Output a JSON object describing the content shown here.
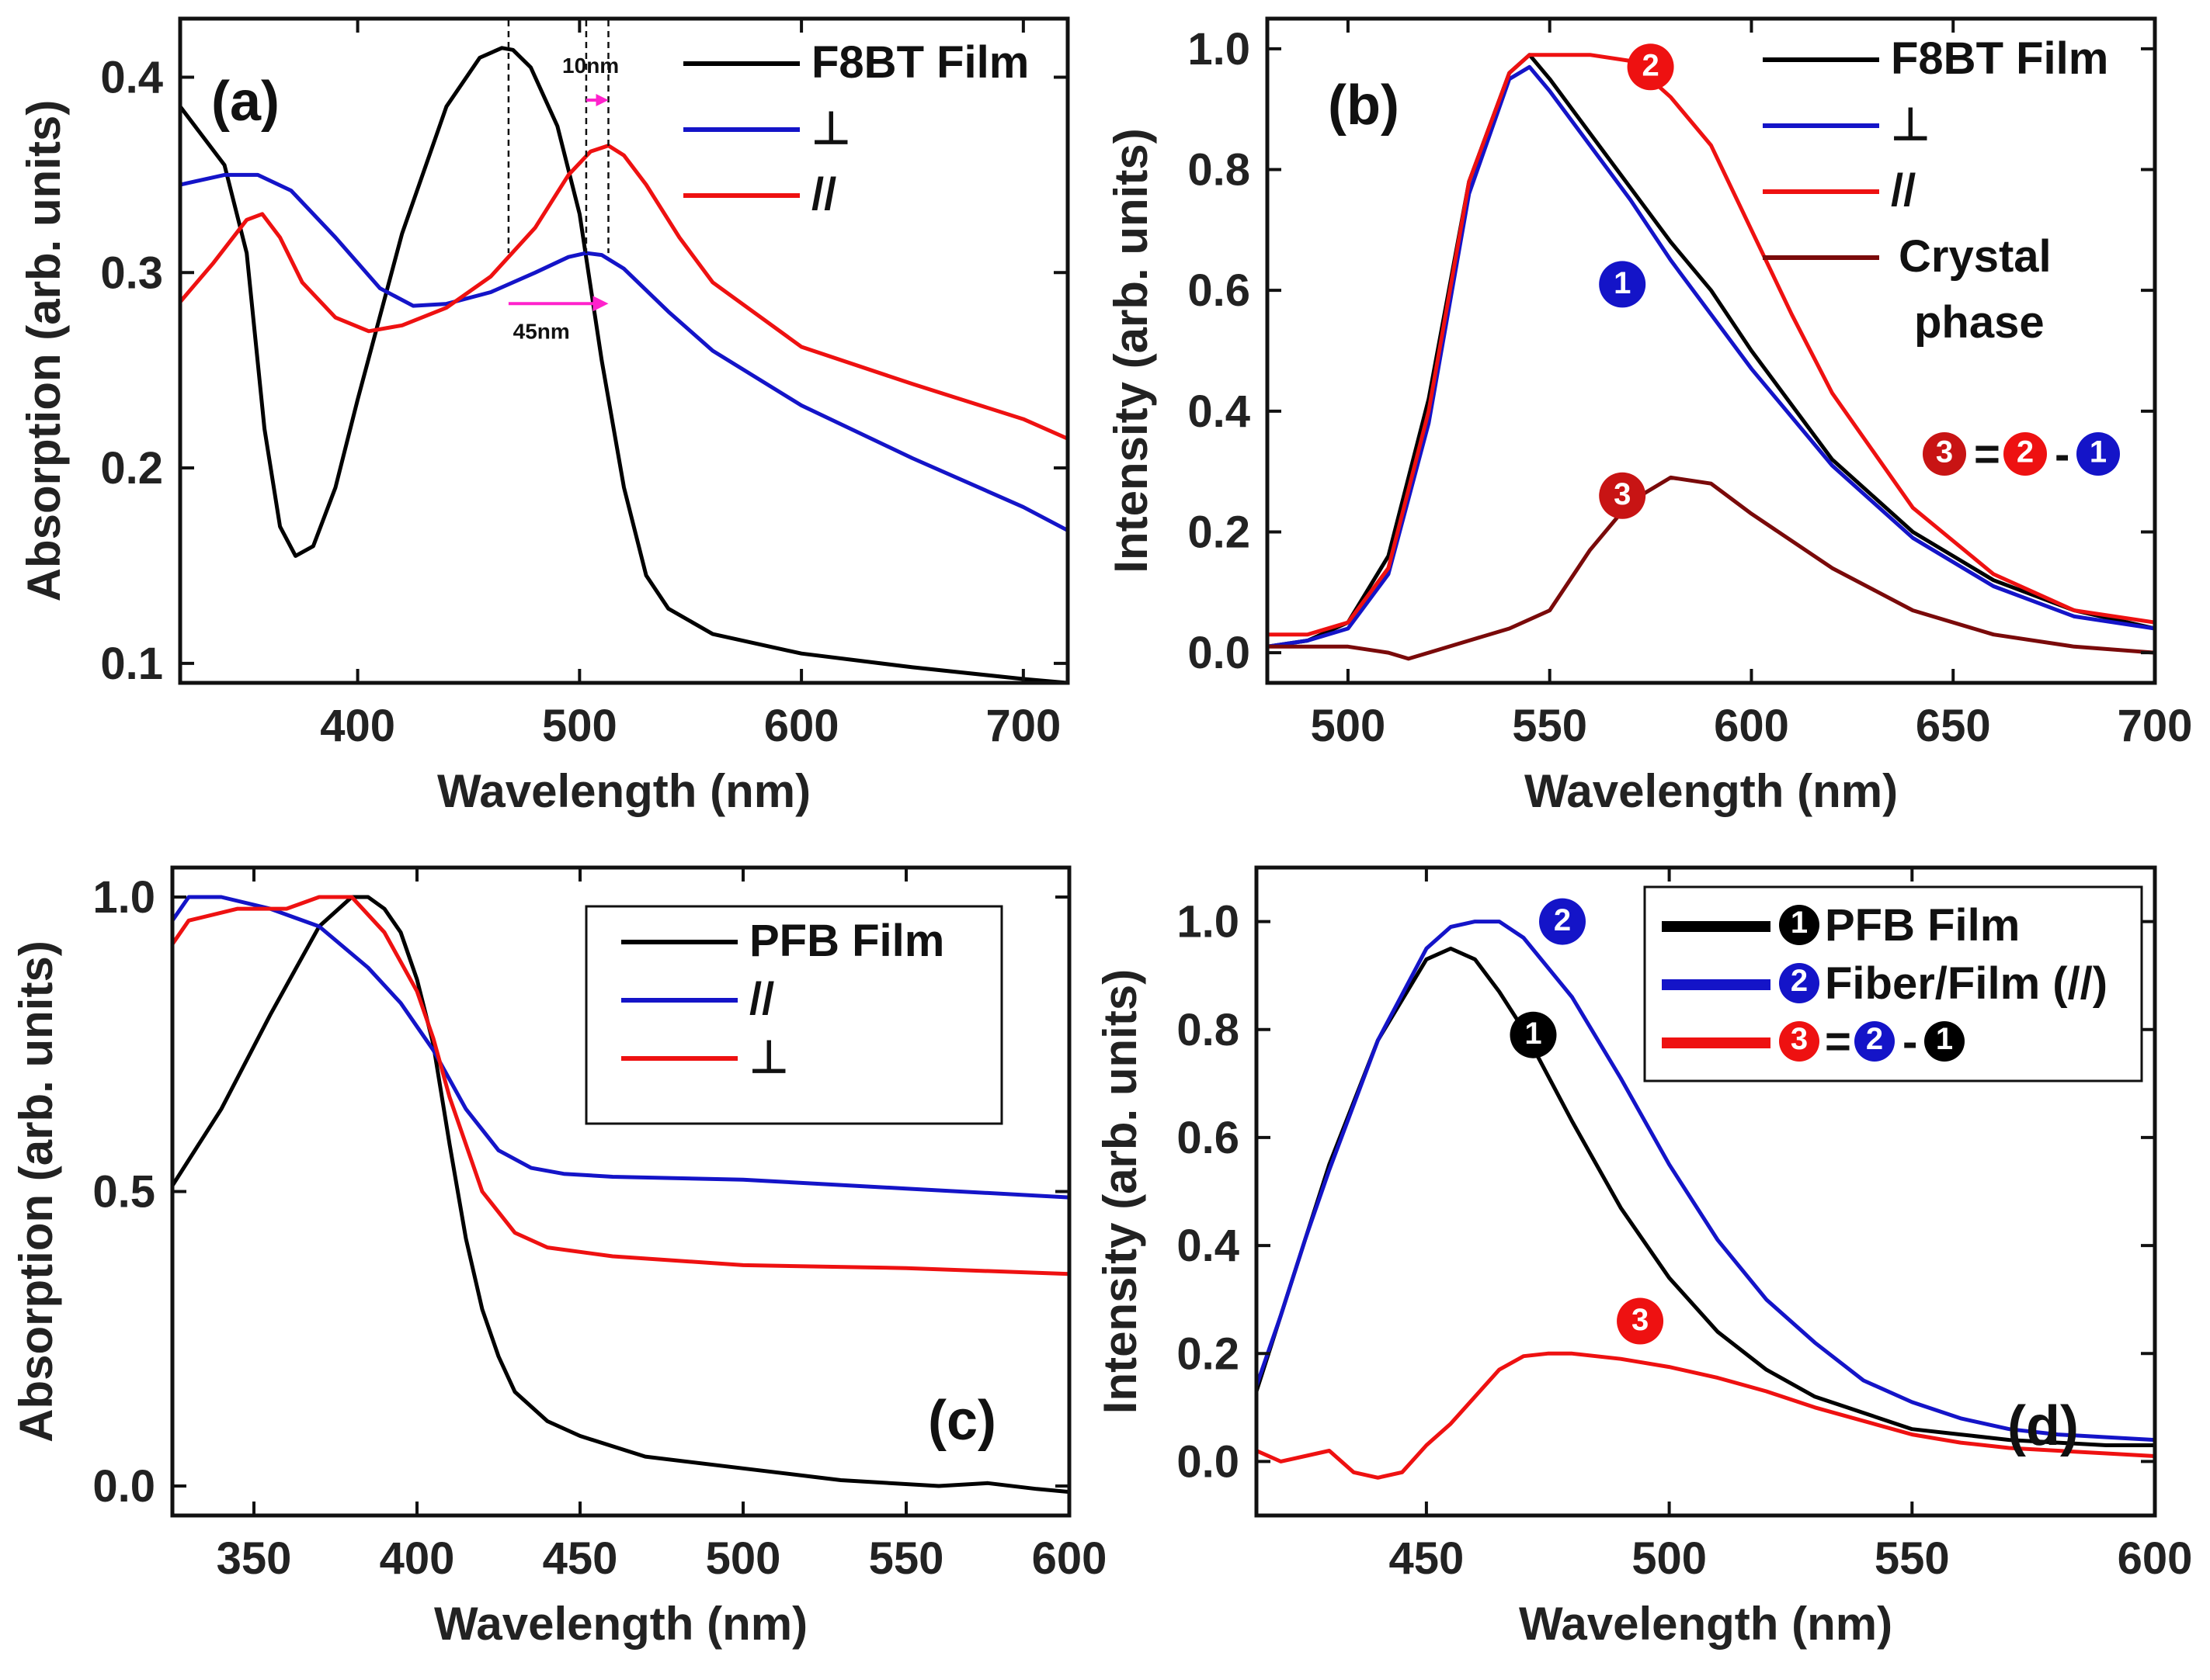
{
  "chart_data": [
    {
      "id": "a",
      "type": "line",
      "panel_label": "(a)",
      "xlabel": "Wavelength (nm)",
      "ylabel": "Absorption (arb. units)",
      "xlim": [
        320,
        720
      ],
      "ylim": [
        0.09,
        0.43
      ],
      "xticks": [
        400,
        500,
        600,
        700
      ],
      "yticks": [
        0.1,
        0.2,
        0.3,
        0.4
      ],
      "ytick_labels": [
        "0.1",
        "0.2",
        "0.3",
        "0.4"
      ],
      "legend_position": "top-right",
      "series": [
        {
          "name": "F8BT Film",
          "color": "#000000",
          "x": [
            320,
            330,
            340,
            350,
            358,
            365,
            372,
            380,
            390,
            400,
            420,
            440,
            455,
            465,
            470,
            478,
            490,
            500,
            510,
            520,
            530,
            540,
            560,
            600,
            650,
            700,
            720
          ],
          "y": [
            0.385,
            0.37,
            0.355,
            0.31,
            0.22,
            0.17,
            0.155,
            0.16,
            0.19,
            0.235,
            0.32,
            0.385,
            0.41,
            0.415,
            0.414,
            0.405,
            0.375,
            0.33,
            0.255,
            0.19,
            0.145,
            0.128,
            0.115,
            0.105,
            0.098,
            0.092,
            0.09
          ]
        },
        {
          "name": "⊥",
          "color": "#1414c8",
          "x": [
            320,
            340,
            355,
            370,
            390,
            410,
            425,
            440,
            460,
            480,
            495,
            503,
            510,
            520,
            540,
            560,
            600,
            650,
            700,
            720
          ],
          "y": [
            0.345,
            0.35,
            0.35,
            0.342,
            0.318,
            0.292,
            0.283,
            0.284,
            0.29,
            0.3,
            0.308,
            0.31,
            0.309,
            0.302,
            0.28,
            0.26,
            0.232,
            0.205,
            0.18,
            0.168
          ]
        },
        {
          "name": "//",
          "color": "#ee1111",
          "x": [
            320,
            335,
            350,
            357,
            365,
            375,
            390,
            405,
            420,
            440,
            460,
            480,
            495,
            505,
            513,
            520,
            530,
            545,
            560,
            600,
            650,
            700,
            720
          ],
          "y": [
            0.285,
            0.305,
            0.327,
            0.33,
            0.318,
            0.295,
            0.277,
            0.27,
            0.273,
            0.282,
            0.298,
            0.323,
            0.35,
            0.362,
            0.365,
            0.36,
            0.345,
            0.318,
            0.295,
            0.262,
            0.243,
            0.225,
            0.215
          ]
        }
      ],
      "annotations": [
        {
          "text": "10nm",
          "from_x": 503,
          "to_x": 513
        },
        {
          "text": "45nm",
          "from_x": 468,
          "to_x": 513
        }
      ]
    },
    {
      "id": "b",
      "type": "line",
      "panel_label": "(b)",
      "xlabel": "Wavelength (nm)",
      "ylabel": "Intensity (arb. units)",
      "xlim": [
        480,
        700
      ],
      "ylim": [
        -0.05,
        1.05
      ],
      "xticks": [
        500,
        550,
        600,
        650,
        700
      ],
      "yticks": [
        0.0,
        0.2,
        0.4,
        0.6,
        0.8,
        1.0
      ],
      "ytick_labels": [
        "0.0",
        "0.2",
        "0.4",
        "0.6",
        "0.8",
        "1.0"
      ],
      "legend_position": "top-right",
      "series": [
        {
          "name": "F8BT Film",
          "color": "#000000",
          "x": [
            480,
            490,
            500,
            510,
            520,
            530,
            540,
            545,
            550,
            560,
            570,
            580,
            590,
            600,
            620,
            640,
            660,
            680,
            700
          ],
          "y": [
            0.01,
            0.02,
            0.05,
            0.16,
            0.42,
            0.78,
            0.96,
            0.99,
            0.95,
            0.86,
            0.77,
            0.68,
            0.6,
            0.5,
            0.32,
            0.2,
            0.12,
            0.07,
            0.04
          ]
        },
        {
          "name": "⊥",
          "color": "#1414c8",
          "x": [
            480,
            490,
            500,
            510,
            520,
            530,
            540,
            545,
            550,
            560,
            570,
            580,
            590,
            600,
            620,
            640,
            660,
            680,
            700
          ],
          "y": [
            0.01,
            0.02,
            0.04,
            0.13,
            0.38,
            0.76,
            0.95,
            0.97,
            0.93,
            0.84,
            0.75,
            0.65,
            0.56,
            0.47,
            0.31,
            0.19,
            0.11,
            0.06,
            0.04
          ]
        },
        {
          "name": "//",
          "color": "#ee1111",
          "x": [
            480,
            490,
            500,
            510,
            520,
            530,
            540,
            545,
            550,
            560,
            570,
            580,
            590,
            600,
            610,
            620,
            640,
            660,
            680,
            700
          ],
          "y": [
            0.03,
            0.03,
            0.05,
            0.14,
            0.4,
            0.78,
            0.96,
            0.99,
            0.99,
            0.99,
            0.98,
            0.92,
            0.84,
            0.7,
            0.56,
            0.43,
            0.24,
            0.13,
            0.07,
            0.05
          ]
        },
        {
          "name": "Crystal phase",
          "color": "#7a0a0a",
          "x": [
            480,
            490,
            500,
            510,
            515,
            520,
            530,
            540,
            550,
            560,
            570,
            580,
            590,
            600,
            620,
            640,
            660,
            680,
            700
          ],
          "y": [
            0.01,
            0.01,
            0.01,
            0.0,
            -0.01,
            0.0,
            0.02,
            0.04,
            0.07,
            0.17,
            0.25,
            0.29,
            0.28,
            0.23,
            0.14,
            0.07,
            0.03,
            0.01,
            0.0
          ]
        }
      ],
      "annotations": [
        {
          "badge": "2",
          "color": "#ee1111",
          "x": 575,
          "y": 0.97
        },
        {
          "badge": "1",
          "color": "#1414c8",
          "x": 568,
          "y": 0.61
        },
        {
          "badge": "3",
          "color": "#c81414",
          "x": 568,
          "y": 0.26
        }
      ],
      "equation": [
        "3",
        "=",
        "2",
        "-",
        "1"
      ]
    },
    {
      "id": "c",
      "type": "line",
      "panel_label": "(c)",
      "xlabel": "Wavelength (nm)",
      "ylabel": "Absorption (arb. units)",
      "xlim": [
        325,
        600
      ],
      "ylim": [
        -0.05,
        1.05
      ],
      "xticks": [
        350,
        400,
        450,
        500,
        550,
        600
      ],
      "yticks": [
        0.0,
        0.5,
        1.0
      ],
      "ytick_labels": [
        "0.0",
        "0.5",
        "1.0"
      ],
      "legend_position": "top-right",
      "series": [
        {
          "name": "PFB Film",
          "color": "#000000",
          "x": [
            325,
            340,
            355,
            370,
            380,
            385,
            390,
            395,
            400,
            405,
            410,
            415,
            420,
            425,
            430,
            440,
            450,
            470,
            500,
            530,
            560,
            575,
            590,
            600
          ],
          "y": [
            0.51,
            0.64,
            0.8,
            0.95,
            1.0,
            1.0,
            0.98,
            0.94,
            0.86,
            0.75,
            0.58,
            0.42,
            0.3,
            0.22,
            0.16,
            0.11,
            0.085,
            0.05,
            0.03,
            0.01,
            0.0,
            0.005,
            -0.005,
            -0.01
          ]
        },
        {
          "name": "//",
          "color": "#1414c8",
          "x": [
            325,
            330,
            340,
            355,
            370,
            385,
            395,
            405,
            415,
            425,
            435,
            445,
            460,
            500,
            550,
            600
          ],
          "y": [
            0.96,
            1.0,
            1.0,
            0.98,
            0.95,
            0.88,
            0.82,
            0.74,
            0.64,
            0.57,
            0.54,
            0.53,
            0.525,
            0.52,
            0.505,
            0.49
          ]
        },
        {
          "name": "⊥",
          "color": "#ee1111",
          "x": [
            325,
            330,
            345,
            360,
            370,
            380,
            390,
            400,
            405,
            410,
            420,
            430,
            440,
            460,
            500,
            550,
            600
          ],
          "y": [
            0.92,
            0.96,
            0.98,
            0.98,
            1.0,
            1.0,
            0.94,
            0.84,
            0.76,
            0.66,
            0.5,
            0.43,
            0.405,
            0.39,
            0.375,
            0.37,
            0.36
          ]
        }
      ]
    },
    {
      "id": "d",
      "type": "line",
      "panel_label": "(d)",
      "xlabel": "Wavelength (nm)",
      "ylabel": "Intensity (arb. units)",
      "xlim": [
        415,
        600
      ],
      "ylim": [
        -0.1,
        1.1
      ],
      "xticks": [
        450,
        500,
        550,
        600
      ],
      "yticks": [
        0.0,
        0.2,
        0.4,
        0.6,
        0.8,
        1.0
      ],
      "ytick_labels": [
        "0.0",
        "0.2",
        "0.4",
        "0.6",
        "0.8",
        "1.0"
      ],
      "legend_position": "top-right",
      "series": [
        {
          "name": "PFB Film",
          "badge": "1",
          "badge_color": "#000000",
          "color": "#000000",
          "x": [
            415,
            420,
            425,
            430,
            440,
            450,
            455,
            460,
            465,
            470,
            480,
            490,
            500,
            510,
            520,
            530,
            540,
            550,
            560,
            570,
            580,
            590,
            600
          ],
          "y": [
            0.13,
            0.27,
            0.41,
            0.55,
            0.78,
            0.93,
            0.95,
            0.93,
            0.87,
            0.8,
            0.63,
            0.47,
            0.34,
            0.24,
            0.17,
            0.12,
            0.09,
            0.06,
            0.05,
            0.04,
            0.035,
            0.03,
            0.03
          ]
        },
        {
          "name": "Fiber/Film (//)",
          "badge": "2",
          "badge_color": "#1414c8",
          "color": "#1414c8",
          "x": [
            415,
            420,
            425,
            430,
            440,
            450,
            455,
            460,
            465,
            470,
            480,
            490,
            500,
            510,
            520,
            530,
            540,
            550,
            560,
            570,
            580,
            590,
            600
          ],
          "y": [
            0.14,
            0.27,
            0.41,
            0.54,
            0.78,
            0.95,
            0.99,
            1.0,
            1.0,
            0.97,
            0.86,
            0.71,
            0.55,
            0.41,
            0.3,
            0.22,
            0.15,
            0.11,
            0.08,
            0.06,
            0.05,
            0.045,
            0.04
          ]
        },
        {
          "name": "=",
          "badge": "3",
          "badge_color": "#ee1111",
          "color": "#ee1111",
          "x": [
            415,
            420,
            425,
            430,
            435,
            440,
            445,
            450,
            455,
            460,
            465,
            470,
            475,
            480,
            490,
            500,
            510,
            520,
            530,
            540,
            550,
            560,
            570,
            580,
            590,
            600
          ],
          "y": [
            0.02,
            0.0,
            0.01,
            0.02,
            -0.02,
            -0.03,
            -0.02,
            0.03,
            0.07,
            0.12,
            0.17,
            0.195,
            0.2,
            0.2,
            0.19,
            0.175,
            0.155,
            0.13,
            0.1,
            0.075,
            0.05,
            0.035,
            0.025,
            0.02,
            0.015,
            0.01
          ]
        }
      ],
      "legend_equation_rhs": [
        "2",
        "-",
        "1"
      ],
      "annotations": [
        {
          "badge": "2",
          "color": "#1414c8",
          "x": 478,
          "y": 1.0
        },
        {
          "badge": "1",
          "color": "#000000",
          "x": 472,
          "y": 0.79
        },
        {
          "badge": "3",
          "color": "#ee1111",
          "x": 494,
          "y": 0.26
        }
      ]
    }
  ]
}
